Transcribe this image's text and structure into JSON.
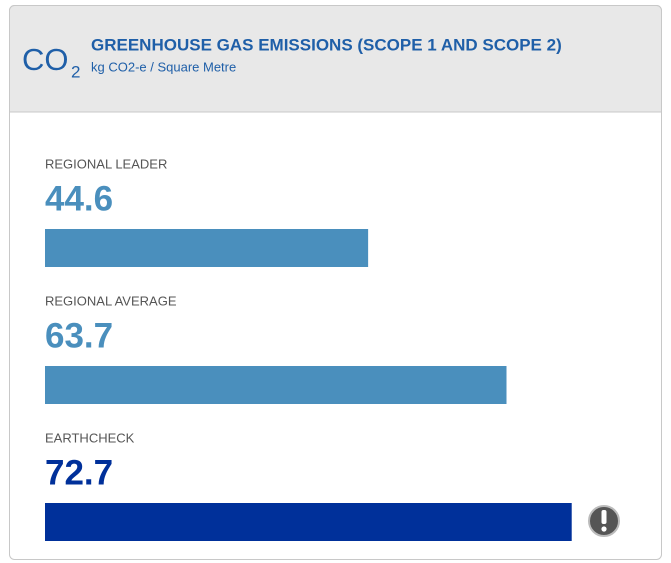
{
  "chart_data": {
    "type": "bar",
    "orientation": "horizontal",
    "icon": "CO",
    "icon_subscript": "2",
    "title": "GREENHOUSE GAS EMISSIONS (SCOPE 1 AND SCOPE 2)",
    "subtitle": "kg CO2-e / Square Metre",
    "categories": [
      "REGIONAL LEADER",
      "REGIONAL AVERAGE",
      "EARTHCHECK"
    ],
    "values": [
      44.6,
      63.7,
      72.7
    ],
    "colors": [
      "#4a8fbd",
      "#4a8fbd",
      "#00309a"
    ]
  }
}
